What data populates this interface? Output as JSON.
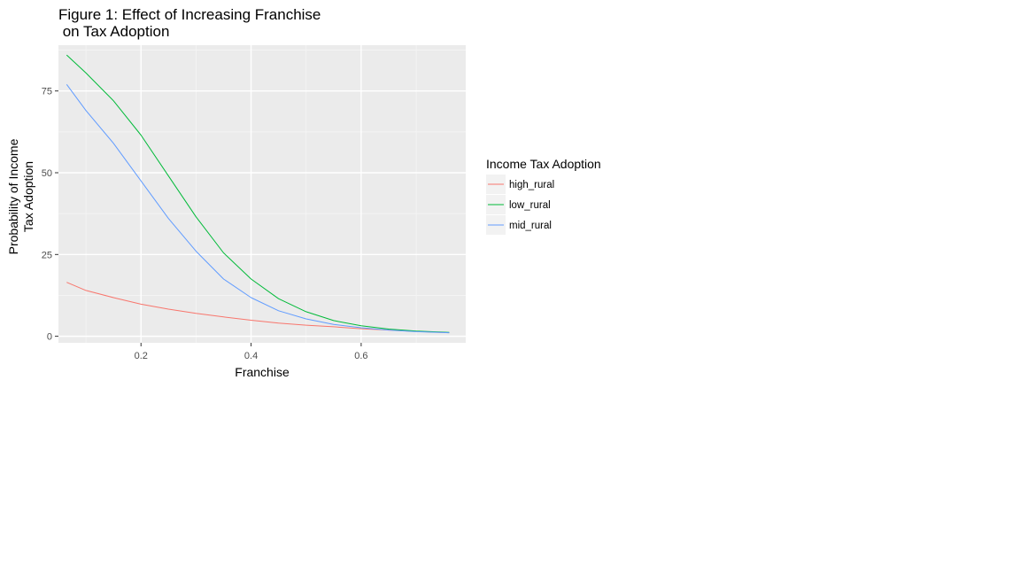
{
  "chart_data": {
    "type": "line",
    "title_lines": [
      "Figure 1: Effect of Increasing Franchise",
      " on Tax Adoption"
    ],
    "xlabel": "Franchise",
    "ylabel_lines": [
      "Probability of Income",
      "Tax Adoption"
    ],
    "xlim": [
      0.05,
      0.79
    ],
    "ylim": [
      -2,
      89
    ],
    "x_ticks": [
      0.2,
      0.4,
      0.6
    ],
    "x_tick_labels": [
      "0.2",
      "0.4",
      "0.6"
    ],
    "y_ticks": [
      0,
      25,
      50,
      75
    ],
    "y_tick_labels": [
      "0",
      "25",
      "50",
      "75"
    ],
    "grid": true,
    "legend": {
      "title": "Income Tax Adoption",
      "position": "right"
    },
    "x": [
      0.065,
      0.1,
      0.15,
      0.2,
      0.25,
      0.3,
      0.35,
      0.4,
      0.45,
      0.5,
      0.55,
      0.6,
      0.65,
      0.7,
      0.76
    ],
    "series": [
      {
        "name": "high_rural",
        "color": "#F8766D",
        "values": [
          16.5,
          14,
          11.8,
          9.8,
          8.3,
          7,
          5.9,
          4.9,
          4,
          3.4,
          2.9,
          2.3,
          1.9,
          1.5,
          1.1
        ]
      },
      {
        "name": "low_rural",
        "color": "#00BA38",
        "values": [
          86,
          80.5,
          72,
          61.5,
          49,
          36.5,
          25.5,
          17.5,
          11.5,
          7.5,
          4.8,
          3.2,
          2.2,
          1.6,
          1.2
        ]
      },
      {
        "name": "mid_rural",
        "color": "#619CFF",
        "values": [
          77,
          69,
          59,
          47.5,
          36,
          26,
          17.5,
          11.8,
          7.8,
          5.3,
          3.6,
          2.6,
          1.9,
          1.4,
          1.1
        ]
      }
    ]
  }
}
